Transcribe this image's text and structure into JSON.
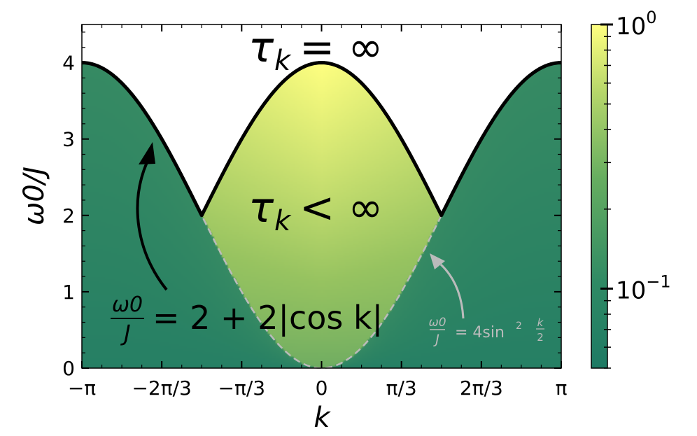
{
  "chart_data": {
    "type": "heatmap",
    "title": "",
    "xlabel": "k",
    "ylabel": "ω0/J",
    "xlim": [
      -3.14159,
      3.14159
    ],
    "ylim": [
      0,
      4.5
    ],
    "x_ticks": [
      {
        "value": -3.14159,
        "label": "−π"
      },
      {
        "value": -2.0944,
        "label": "−2π/3"
      },
      {
        "value": -1.0472,
        "label": "−π/3"
      },
      {
        "value": 0,
        "label": "0"
      },
      {
        "value": 1.0472,
        "label": "π/3"
      },
      {
        "value": 2.0944,
        "label": "2π/3"
      },
      {
        "value": 3.14159,
        "label": "π"
      }
    ],
    "y_ticks": [
      {
        "value": 0,
        "label": "0"
      },
      {
        "value": 1,
        "label": "1"
      },
      {
        "value": 2,
        "label": "2"
      },
      {
        "value": 3,
        "label": "3"
      },
      {
        "value": 4,
        "label": "4"
      }
    ],
    "colorbar": {
      "scale": "log",
      "range": [
        0.05,
        1
      ],
      "ticks": [
        {
          "value": 1,
          "base": "10",
          "exp": "0"
        },
        {
          "value": 0.1,
          "base": "10",
          "exp": "−1"
        }
      ],
      "colors": [
        "#1e7a64",
        "#4e9a62",
        "#97c360",
        "#ffff80"
      ]
    },
    "boundary_curve": {
      "formula": "ω0/J = 2 + 2|cos k|",
      "color": "#000000"
    },
    "lower_curve": {
      "formula": "ω0/J = 4 sin²(k/2)",
      "color": "#bbbbbb",
      "style": "dashed"
    },
    "annotations": {
      "upper_region": {
        "tau": "τ",
        "sub": "k",
        "rel": "= ∞"
      },
      "lower_region": {
        "tau": "τ",
        "sub": "k",
        "rel": "< ∞"
      },
      "boundary_label": {
        "num": "ω0",
        "den": "J",
        "rhs": "= 2 + 2|cos k|"
      },
      "dashed_label": {
        "num": "ω0",
        "den": "J",
        "rhs": "= 4sin",
        "sup": "2",
        "frac_num": "k",
        "frac_den": "2"
      }
    }
  }
}
